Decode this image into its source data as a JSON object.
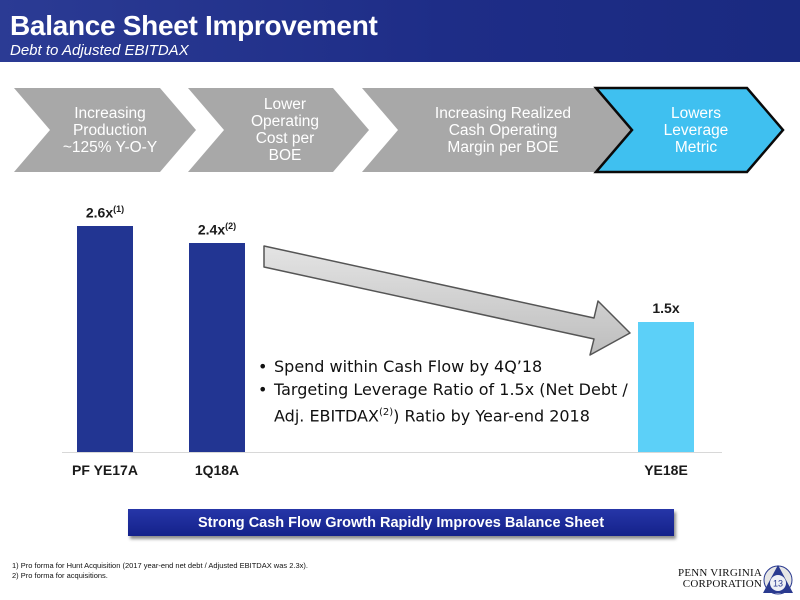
{
  "header": {
    "title": "Balance Sheet Improvement",
    "subtitle": "Debt to Adjusted EBITDAX"
  },
  "process_steps": [
    {
      "lines": [
        "Increasing",
        "Production",
        "~125% Y-O-Y"
      ],
      "color": "#a8a8a8"
    },
    {
      "lines": [
        "Lower",
        "Operating",
        "Cost per",
        "BOE"
      ],
      "color": "#a8a8a8"
    },
    {
      "lines": [
        "Increasing Realized",
        "Cash Operating",
        "Margin  per BOE"
      ],
      "color": "#a8a8a8"
    },
    {
      "lines": [
        "Lowers",
        "Leverage",
        "Metric"
      ],
      "color": "#3fc0f0"
    }
  ],
  "chart_data": {
    "type": "bar",
    "categories": [
      "PF YE17A",
      "1Q18A",
      "YE18E"
    ],
    "values": [
      2.6,
      2.4,
      1.5
    ],
    "value_labels": [
      "2.6x",
      "2.4x",
      "1.5x"
    ],
    "value_footnotes": [
      "(1)",
      "(2)",
      ""
    ],
    "colors": [
      "#223592",
      "#223592",
      "#5cd0f8"
    ],
    "ylim": [
      0,
      3.0
    ],
    "grid": false,
    "title": "",
    "xlabel": "",
    "ylabel": ""
  },
  "bullets": {
    "item1": "Spend within Cash Flow by 4Q’18",
    "item2_line1": "Targeting Leverage Ratio of 1.5x (Net Debt /",
    "item2_line2a": "Adj. EBITDAX",
    "item2_sup": "(2)",
    "item2_line2b": ") Ratio by Year-end 2018"
  },
  "banner": {
    "text": "Strong Cash Flow Growth Rapidly Improves Balance Sheet"
  },
  "footnotes": {
    "note1": "1)  Pro forma for Hunt Acquisition (2017 year-end net debt / Adjusted EBITDAX was 2.3x).",
    "note2": "2)  Pro forma for acquisitions."
  },
  "logo": {
    "line1": "PENN VIRGINIA",
    "line2": "CORPORATION",
    "page_number": "13"
  }
}
